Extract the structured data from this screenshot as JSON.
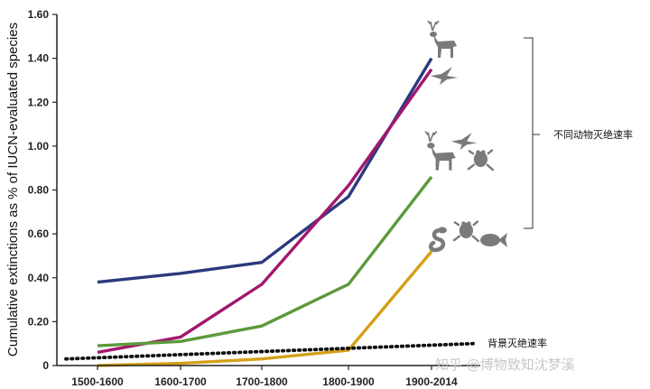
{
  "chart_data": {
    "type": "line",
    "title": "",
    "xlabel": "",
    "ylabel": "Cumulative extinctions as % of IUCN-evaluated species",
    "categories": [
      "1500-1600",
      "1600-1700",
      "1700-1800",
      "1800-1900",
      "1900-2014"
    ],
    "y_ticks": [
      "0",
      "0.20",
      "0.40",
      "0.60",
      "0.80",
      "1.00",
      "1.20",
      "1.40",
      "1.60"
    ],
    "ylim": [
      0,
      1.6
    ],
    "grid": false,
    "series": [
      {
        "key": "mammals",
        "color": "#2b3a7e",
        "values": [
          0.38,
          0.42,
          0.47,
          0.77,
          1.4
        ]
      },
      {
        "key": "birds",
        "color": "#a3176f",
        "values": [
          0.06,
          0.13,
          0.37,
          0.82,
          1.35
        ]
      },
      {
        "key": "vertebrates",
        "color": "#5c9a3c",
        "values": [
          0.09,
          0.11,
          0.18,
          0.37,
          0.86
        ]
      },
      {
        "key": "reptiles_amphibians_fish",
        "color": "#d4a017",
        "values": [
          0.0,
          0.01,
          0.03,
          0.07,
          0.52
        ]
      }
    ],
    "background_rate": {
      "key": "background",
      "color": "#111111",
      "style": "dotted",
      "start": 0.03,
      "end": 0.1
    },
    "annotations": {
      "bracket_label": "不同动物灭绝速率",
      "background_label": "背景灭绝速率"
    },
    "icons": [
      "deer-icon",
      "bird-icon",
      "frog-icon",
      "snake-icon",
      "fish-icon"
    ]
  },
  "watermark": "知乎 @博物致知沈梦溪"
}
